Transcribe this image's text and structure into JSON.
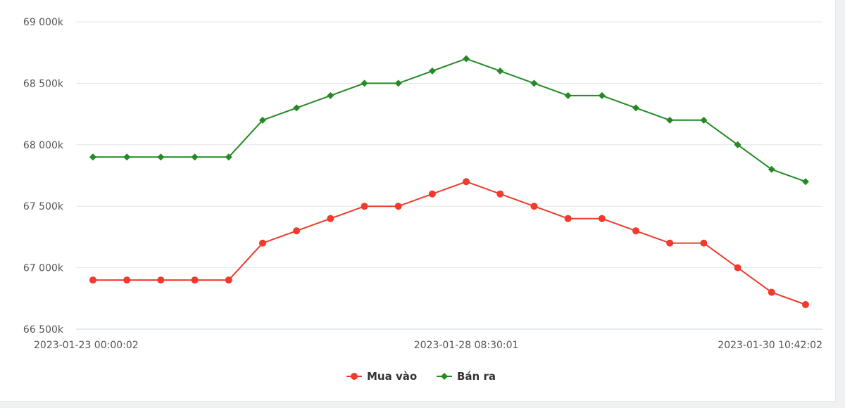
{
  "chart_data": {
    "type": "line",
    "title": "",
    "xlabel": "",
    "ylabel": "",
    "ylim": [
      66500,
      69000
    ],
    "y_ticks": [
      {
        "value": 66500,
        "label": "66 500k"
      },
      {
        "value": 67000,
        "label": "67 000k"
      },
      {
        "value": 67500,
        "label": "67 500k"
      },
      {
        "value": 68000,
        "label": "68 000k"
      },
      {
        "value": 68500,
        "label": "68 500k"
      },
      {
        "value": 69000,
        "label": "69 000k"
      }
    ],
    "x_tick_labels": [
      {
        "index": 0,
        "label": "2023-01-23 00:00:02"
      },
      {
        "index": 11,
        "label": "2023-01-28 08:30:01"
      },
      {
        "index": 21,
        "label": "2023-01-30 10:42:02"
      }
    ],
    "point_count": 22,
    "grid": true,
    "legend_position": "bottom",
    "series": [
      {
        "name": "Mua vào",
        "color": "#ef3a2d",
        "marker": "circle",
        "values": [
          66900,
          66900,
          66900,
          66900,
          66900,
          67200,
          67300,
          67400,
          67500,
          67500,
          67600,
          67700,
          67600,
          67500,
          67400,
          67400,
          67300,
          67200,
          67200,
          67000,
          66800,
          66700
        ]
      },
      {
        "name": "Bán ra",
        "color": "#248a24",
        "marker": "diamond",
        "values": [
          67900,
          67900,
          67900,
          67900,
          67900,
          68200,
          68300,
          68400,
          68500,
          68500,
          68600,
          68700,
          68600,
          68500,
          68400,
          68400,
          68300,
          68200,
          68200,
          68000,
          67800,
          67700
        ]
      }
    ]
  }
}
